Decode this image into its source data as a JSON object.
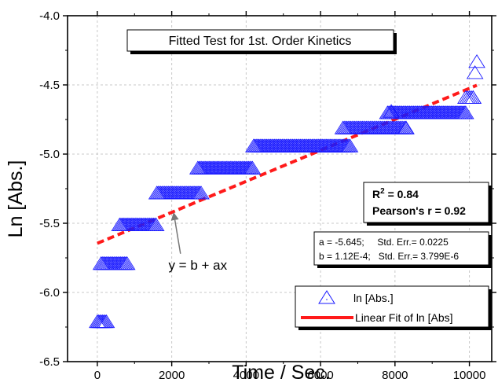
{
  "chart_data": {
    "type": "scatter",
    "title": "Fitted Test for 1st. Order Kinetics",
    "xlabel": "Time / Sec.",
    "ylabel": "Ln [Abs.]",
    "xlim": [
      -800,
      10600
    ],
    "ylim": [
      -6.5,
      -4.0
    ],
    "x_ticks": [
      0,
      2000,
      4000,
      6000,
      8000,
      10000
    ],
    "y_ticks": [
      -6.5,
      -6.0,
      -5.5,
      -5.0,
      -4.5,
      -4.0
    ],
    "x_tick_labels": [
      "0",
      "2000",
      "4000",
      "6000",
      "8000",
      "10000"
    ],
    "y_tick_labels": [
      "-6.5",
      "-6.0",
      "-5.5",
      "-5.0",
      "-4.5",
      "-4.0"
    ],
    "grid": true,
    "series": [
      {
        "name": "ln [Abs.]",
        "kind": "scatter",
        "marker": "open-triangle",
        "color": "#1a1aff",
        "segments": [
          {
            "x_start": 0,
            "x_end": 250,
            "step": 35,
            "y": -6.22
          },
          {
            "x_start": 100,
            "x_end": 800,
            "step": 35,
            "y": -5.8
          },
          {
            "x_start": 600,
            "x_end": 1600,
            "step": 35,
            "y": -5.52
          },
          {
            "x_start": 1600,
            "x_end": 2800,
            "step": 35,
            "y": -5.29
          },
          {
            "x_start": 2700,
            "x_end": 4200,
            "step": 35,
            "y": -5.11
          },
          {
            "x_start": 4200,
            "x_end": 6800,
            "step": 35,
            "y": -4.95
          },
          {
            "x_start": 6600,
            "x_end": 8300,
            "step": 35,
            "y": -4.82
          },
          {
            "x_start": 7800,
            "x_end": 9900,
            "step": 35,
            "y": -4.71
          },
          {
            "x_start": 9900,
            "x_end": 10100,
            "step": 50,
            "y": -4.6
          }
        ],
        "extra_points": [
          {
            "x": 7900,
            "y": -4.7
          },
          {
            "x": 8300,
            "y": -4.82
          },
          {
            "x": 10100,
            "y": -4.6
          },
          {
            "x": 10150,
            "y": -4.42
          },
          {
            "x": 10200,
            "y": -4.34
          }
        ]
      },
      {
        "name": "Linear Fit of ln [Abs]",
        "kind": "line",
        "style": "dashed",
        "color": "#ff1a1a",
        "fit": {
          "a": 0.000112,
          "b": -5.645
        },
        "x_range": [
          0,
          10200
        ]
      }
    ],
    "legend": {
      "position": "bottom-right",
      "entries": [
        "ln [Abs.]",
        "Linear Fit of ln [Abs]"
      ]
    },
    "stats": {
      "r2_label": "R",
      "r2_sup": "2",
      "r2_value": " = 0.84",
      "pearson": "Pearson's r = 0.92"
    },
    "params": {
      "a_line": "a = -5.645;     Std. Err.= 0.0225",
      "b_line": "b = 1.12E-4;   Std. Err.= 3.799E-6"
    },
    "annotation": {
      "text": "y = b + ax",
      "arrow_target": {
        "x": 2050,
        "y": -5.42
      },
      "text_anchor": {
        "x": 2700,
        "y": -5.8
      }
    }
  }
}
